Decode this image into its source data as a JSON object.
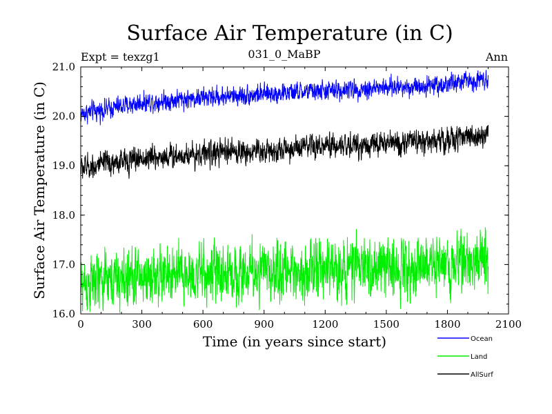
{
  "chart_data": {
    "type": "line",
    "title": "Surface Air Temperature (in C)",
    "experiment_label": "Expt = texzg1",
    "run_label": "031_0_MaBP",
    "season_label": "Ann",
    "xlabel": "Time (in years since start)",
    "ylabel": "Surface Air Temperature (in C)",
    "xlim": [
      0,
      2100
    ],
    "ylim": [
      16.0,
      21.0
    ],
    "x_ticks": [
      "0",
      "300",
      "600",
      "900",
      "1200",
      "1500",
      "1800",
      "2100"
    ],
    "y_ticks": [
      "16.0",
      "17.0",
      "18.0",
      "19.0",
      "20.0",
      "21.0"
    ],
    "legend_position": "bottom-right outside",
    "series": [
      {
        "name": "Ocean",
        "color": "#0000ff",
        "x_start": 0,
        "x_end": 2000,
        "trend_points": [
          [
            0,
            20.05
          ],
          [
            300,
            20.28
          ],
          [
            600,
            20.38
          ],
          [
            900,
            20.45
          ],
          [
            1200,
            20.52
          ],
          [
            1500,
            20.58
          ],
          [
            1800,
            20.65
          ],
          [
            2000,
            20.78
          ]
        ],
        "noise_amplitude": 0.12
      },
      {
        "name": "Land",
        "color": "#00ee00",
        "x_start": 0,
        "x_end": 2000,
        "trend_points": [
          [
            0,
            16.6
          ],
          [
            300,
            16.75
          ],
          [
            600,
            16.8
          ],
          [
            900,
            16.85
          ],
          [
            1200,
            16.9
          ],
          [
            1500,
            16.95
          ],
          [
            1800,
            17.02
          ],
          [
            2000,
            17.15
          ]
        ],
        "noise_amplitude": 0.35
      },
      {
        "name": "AllSurf",
        "color": "#000000",
        "x_start": 0,
        "x_end": 2000,
        "trend_points": [
          [
            0,
            18.95
          ],
          [
            300,
            19.15
          ],
          [
            600,
            19.25
          ],
          [
            900,
            19.3
          ],
          [
            1200,
            19.38
          ],
          [
            1500,
            19.45
          ],
          [
            1800,
            19.52
          ],
          [
            2000,
            19.65
          ]
        ],
        "noise_amplitude": 0.15
      }
    ]
  }
}
